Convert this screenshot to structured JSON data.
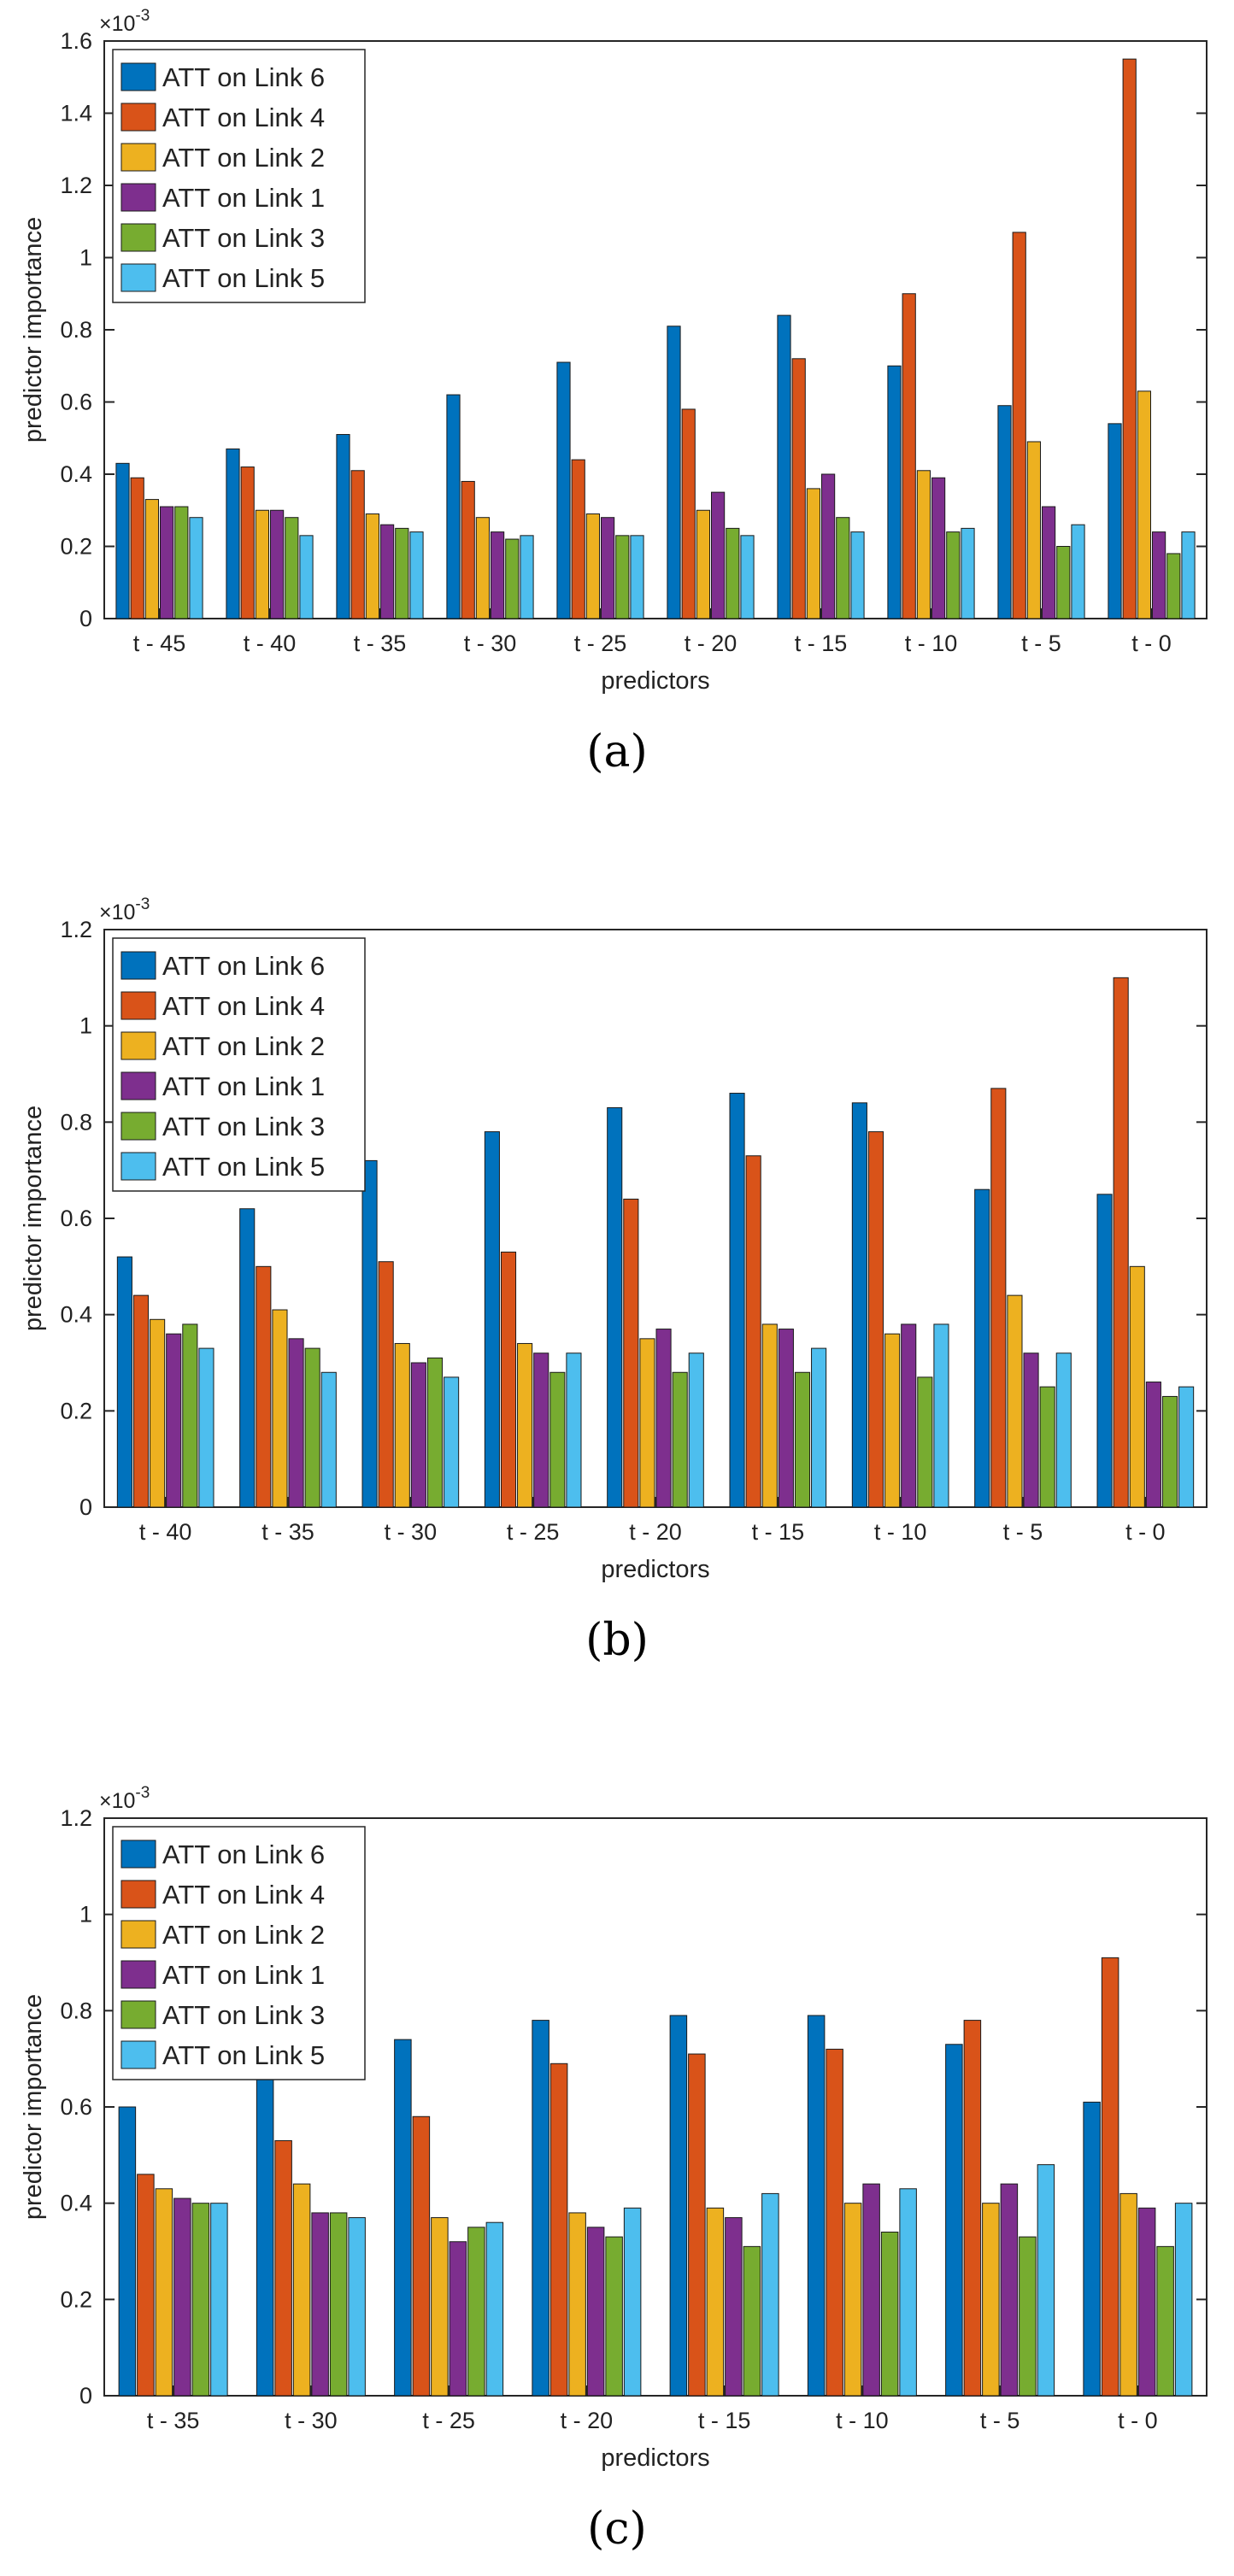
{
  "colors": {
    "ATT on Link 6": "#0072BD",
    "ATT on Link 4": "#D95319",
    "ATT on Link 2": "#EDB120",
    "ATT on Link 1": "#7E2F8E",
    "ATT on Link 3": "#77AC30",
    "ATT on Link 5": "#4DBEEE"
  },
  "chart_data": [
    {
      "type": "bar",
      "caption": "(a)",
      "xlabel": "predictors",
      "ylabel": "predictor importance",
      "exponent_label": "×10",
      "exponent_power": "-3",
      "ylim": [
        0,
        1.6
      ],
      "yticks": [
        "0",
        "0.2",
        "0.4",
        "0.6",
        "0.8",
        "1",
        "1.2",
        "1.4",
        "1.6"
      ],
      "legend_position": "top-left",
      "categories": [
        "t - 45",
        "t - 40",
        "t - 35",
        "t - 30",
        "t - 25",
        "t - 20",
        "t - 15",
        "t - 10",
        "t - 5",
        "t - 0"
      ],
      "series": [
        {
          "name": "ATT on Link 6",
          "values": [
            0.43,
            0.47,
            0.51,
            0.62,
            0.71,
            0.81,
            0.84,
            0.7,
            0.59,
            0.54
          ]
        },
        {
          "name": "ATT on Link 4",
          "values": [
            0.39,
            0.42,
            0.41,
            0.38,
            0.44,
            0.58,
            0.72,
            0.9,
            1.07,
            1.55
          ]
        },
        {
          "name": "ATT on Link 2",
          "values": [
            0.33,
            0.3,
            0.29,
            0.28,
            0.29,
            0.3,
            0.36,
            0.41,
            0.49,
            0.63
          ]
        },
        {
          "name": "ATT on Link 1",
          "values": [
            0.31,
            0.3,
            0.26,
            0.24,
            0.28,
            0.35,
            0.4,
            0.39,
            0.31,
            0.24
          ]
        },
        {
          "name": "ATT on Link 3",
          "values": [
            0.31,
            0.28,
            0.25,
            0.22,
            0.23,
            0.25,
            0.28,
            0.24,
            0.2,
            0.18
          ]
        },
        {
          "name": "ATT on Link 5",
          "values": [
            0.28,
            0.23,
            0.24,
            0.23,
            0.23,
            0.23,
            0.24,
            0.25,
            0.26,
            0.24
          ]
        }
      ]
    },
    {
      "type": "bar",
      "caption": "(b)",
      "xlabel": "predictors",
      "ylabel": "predictor importance",
      "exponent_label": "×10",
      "exponent_power": "-3",
      "ylim": [
        0,
        1.2
      ],
      "yticks": [
        "0",
        "0.2",
        "0.4",
        "0.6",
        "0.8",
        "1",
        "1.2"
      ],
      "legend_position": "top-left",
      "categories": [
        "t - 40",
        "t - 35",
        "t - 30",
        "t - 25",
        "t - 20",
        "t - 15",
        "t - 10",
        "t - 5",
        "t - 0"
      ],
      "series": [
        {
          "name": "ATT on Link 6",
          "values": [
            0.52,
            0.62,
            0.72,
            0.78,
            0.83,
            0.86,
            0.84,
            0.66,
            0.65
          ]
        },
        {
          "name": "ATT on Link 4",
          "values": [
            0.44,
            0.5,
            0.51,
            0.53,
            0.64,
            0.73,
            0.78,
            0.87,
            1.1
          ]
        },
        {
          "name": "ATT on Link 2",
          "values": [
            0.39,
            0.41,
            0.34,
            0.34,
            0.35,
            0.38,
            0.36,
            0.44,
            0.5
          ]
        },
        {
          "name": "ATT on Link 1",
          "values": [
            0.36,
            0.35,
            0.3,
            0.32,
            0.37,
            0.37,
            0.38,
            0.32,
            0.26
          ]
        },
        {
          "name": "ATT on Link 3",
          "values": [
            0.38,
            0.33,
            0.31,
            0.28,
            0.28,
            0.28,
            0.27,
            0.25,
            0.23
          ]
        },
        {
          "name": "ATT on Link 5",
          "values": [
            0.33,
            0.28,
            0.27,
            0.32,
            0.32,
            0.33,
            0.38,
            0.32,
            0.25
          ]
        }
      ]
    },
    {
      "type": "bar",
      "caption": "(c)",
      "xlabel": "predictors",
      "ylabel": "predictor importance",
      "exponent_label": "×10",
      "exponent_power": "-3",
      "ylim": [
        0,
        1.2
      ],
      "yticks": [
        "0",
        "0.2",
        "0.4",
        "0.6",
        "0.8",
        "1",
        "1.2"
      ],
      "legend_position": "top-left",
      "categories": [
        "t - 35",
        "t - 30",
        "t - 25",
        "t - 20",
        "t - 15",
        "t - 10",
        "t - 5",
        "t - 0"
      ],
      "series": [
        {
          "name": "ATT on Link 6",
          "values": [
            0.6,
            0.7,
            0.74,
            0.78,
            0.79,
            0.79,
            0.73,
            0.61
          ]
        },
        {
          "name": "ATT on Link 4",
          "values": [
            0.46,
            0.53,
            0.58,
            0.69,
            0.71,
            0.72,
            0.78,
            0.91
          ]
        },
        {
          "name": "ATT on Link 2",
          "values": [
            0.43,
            0.44,
            0.37,
            0.38,
            0.39,
            0.4,
            0.4,
            0.42
          ]
        },
        {
          "name": "ATT on Link 1",
          "values": [
            0.41,
            0.38,
            0.32,
            0.35,
            0.37,
            0.44,
            0.44,
            0.39
          ]
        },
        {
          "name": "ATT on Link 3",
          "values": [
            0.4,
            0.38,
            0.35,
            0.33,
            0.31,
            0.34,
            0.33,
            0.31
          ]
        },
        {
          "name": "ATT on Link 5",
          "values": [
            0.4,
            0.37,
            0.36,
            0.39,
            0.42,
            0.43,
            0.48,
            0.4
          ]
        }
      ]
    }
  ]
}
